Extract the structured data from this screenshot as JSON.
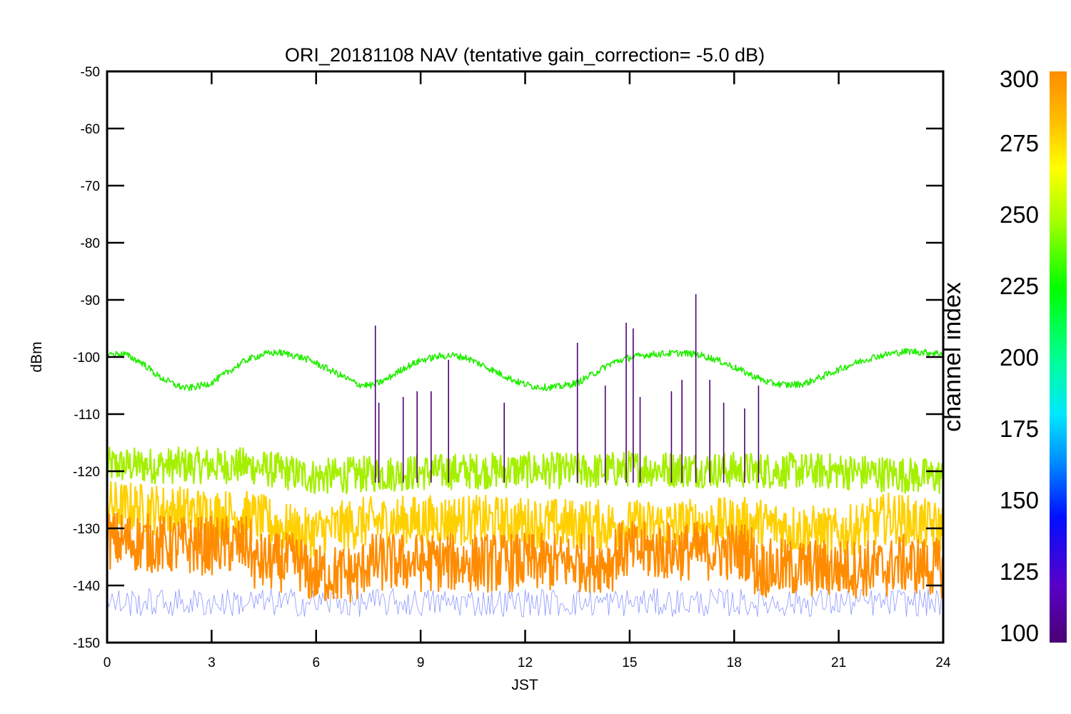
{
  "chart_data": {
    "type": "line",
    "title": "ORI_20181108 NAV (tentative gain_correction= -5.0 dB)",
    "xlabel": "JST",
    "ylabel": "dBm",
    "xlim": [
      0,
      24
    ],
    "ylim": [
      -150,
      -50
    ],
    "x_ticks": [
      0,
      3,
      6,
      9,
      12,
      15,
      18,
      21,
      24
    ],
    "y_ticks": [
      -50,
      -60,
      -70,
      -80,
      -90,
      -100,
      -110,
      -120,
      -130,
      -140,
      -150
    ],
    "colorbar": {
      "label": "channel index",
      "range": [
        100,
        300
      ],
      "ticks": [
        300,
        275,
        250,
        225,
        200,
        175,
        150,
        125,
        100
      ],
      "colors": [
        "#4b0074",
        "#5a00c8",
        "#0010ff",
        "#0090ff",
        "#00e8ff",
        "#00ff90",
        "#00ff00",
        "#a8ff00",
        "#ffff00",
        "#ffc000",
        "#ff8c00"
      ]
    },
    "series": [
      {
        "channel": 240,
        "color": "#22ee00",
        "x": [
          0,
          0.5,
          1,
          1.5,
          2,
          2.3,
          2.7,
          3,
          3.5,
          4,
          4.5,
          4.9,
          5.3,
          5.8,
          6.3,
          6.8,
          7.2,
          7.6,
          8,
          8.5,
          9,
          9.5,
          9.9,
          10.3,
          10.8,
          11.3,
          11.8,
          12.2,
          12.6,
          13,
          13.5,
          14,
          14.5,
          15,
          15.5,
          16,
          16.5,
          17,
          17.5,
          18,
          18.5,
          19,
          19.5,
          20,
          20.5,
          21,
          21.5,
          22,
          22.5,
          23,
          23.5,
          24
        ],
        "y": [
          -99.5,
          -99.5,
          -101,
          -103.5,
          -105,
          -105.5,
          -105,
          -104.5,
          -102.5,
          -100.5,
          -99.5,
          -99.2,
          -99.6,
          -100.5,
          -102,
          -103.5,
          -104.8,
          -105,
          -104,
          -102,
          -100.6,
          -99.9,
          -99.7,
          -100.1,
          -101.5,
          -103,
          -104.4,
          -105.1,
          -105.3,
          -105.2,
          -104.5,
          -102.8,
          -101,
          -100.1,
          -99.6,
          -99.4,
          -99.3,
          -99.6,
          -100.5,
          -101.8,
          -103.2,
          -104.5,
          -104.9,
          -104.7,
          -103.5,
          -102.2,
          -101,
          -100,
          -99.4,
          -99,
          -99.2,
          -99.4
        ]
      },
      {
        "channel": 260,
        "color": "#a4f000",
        "x": [
          0,
          4,
          6,
          7.5,
          10,
          12,
          14,
          15,
          18,
          21,
          24
        ],
        "y": [
          -119,
          -119,
          -121,
          -120.5,
          -120,
          -119.8,
          -120,
          -119.5,
          -119.8,
          -120,
          -121
        ]
      },
      {
        "channel": 280,
        "color": "#ffd000",
        "x": [
          0,
          4.2,
          5.6,
          7.3,
          10,
          12,
          14.5,
          18.5,
          21,
          22.5,
          24
        ],
        "y": [
          -126,
          -128,
          -131,
          -129,
          -128.5,
          -129,
          -129.5,
          -129,
          -131,
          -128,
          -130
        ]
      },
      {
        "channel": 300,
        "color": "#ff8c00",
        "x": [
          0,
          2,
          4.1,
          4.2,
          5.6,
          5.7,
          7.3,
          7.4,
          10,
          12,
          14.5,
          14.6,
          16,
          18.5,
          18.6,
          21,
          22.5,
          22.6,
          24
        ],
        "y": [
          -132,
          -133,
          -133,
          -136,
          -136,
          -138,
          -138,
          -136,
          -136,
          -136,
          -136,
          -134,
          -134,
          -134,
          -137,
          -137,
          -137,
          -136,
          -137
        ]
      }
    ],
    "spikes": [
      {
        "x": 7.7,
        "y": -94.5
      },
      {
        "x": 7.8,
        "y": -108
      },
      {
        "x": 8.5,
        "y": -107
      },
      {
        "x": 8.9,
        "y": -106
      },
      {
        "x": 9.3,
        "y": -106
      },
      {
        "x": 9.8,
        "y": -100.5
      },
      {
        "x": 11.4,
        "y": -108
      },
      {
        "x": 13.5,
        "y": -97.5
      },
      {
        "x": 14.3,
        "y": -105
      },
      {
        "x": 14.9,
        "y": -94
      },
      {
        "x": 15.1,
        "y": -95
      },
      {
        "x": 15.3,
        "y": -107
      },
      {
        "x": 16.2,
        "y": -106
      },
      {
        "x": 16.5,
        "y": -104
      },
      {
        "x": 16.9,
        "y": -89
      },
      {
        "x": 17.3,
        "y": -104
      },
      {
        "x": 17.7,
        "y": -108
      },
      {
        "x": 18.3,
        "y": -109
      },
      {
        "x": 18.7,
        "y": -105
      }
    ]
  }
}
